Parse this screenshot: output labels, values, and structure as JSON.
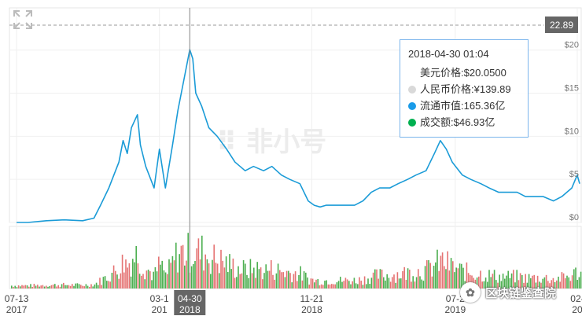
{
  "chart_data": {
    "type": "line",
    "x_ticks": [
      {
        "line1": "07-13",
        "line2": "2017",
        "date": "2017-07-13"
      },
      {
        "line1": "03-1",
        "line2": "201",
        "date": "2018-03-10"
      },
      {
        "line1": "04-30",
        "line2": "2018",
        "date": "2018-04-30",
        "highlight": true
      },
      {
        "line1": "11-21",
        "line2": "2018",
        "date": "2018-11-21"
      },
      {
        "line1": "07-2",
        "line2": "2019",
        "date": "2019-07-20"
      },
      {
        "line1": "02-",
        "line2": "20",
        "date": "2020-02-10"
      }
    ],
    "y_ticks": [
      "$20",
      "$15",
      "$10",
      "$5",
      "$0"
    ],
    "y_tick_values": [
      20,
      15,
      10,
      5,
      0
    ],
    "ylim": [
      0,
      22.89
    ],
    "current_price_label": "22.89",
    "series": [
      {
        "x": [
          "2017-07-13",
          "2017-08-01",
          "2017-09-01",
          "2017-10-01",
          "2017-11-01",
          "2017-11-20",
          "2017-12-01",
          "2017-12-15",
          "2018-01-01",
          "2018-01-08",
          "2018-01-15",
          "2018-01-22",
          "2018-02-01",
          "2018-02-06",
          "2018-02-15",
          "2018-03-01",
          "2018-03-10",
          "2018-03-20",
          "2018-04-01",
          "2018-04-10",
          "2018-04-20",
          "2018-04-30",
          "2018-05-05",
          "2018-05-10",
          "2018-05-20",
          "2018-06-01",
          "2018-06-15",
          "2018-07-01",
          "2018-07-15",
          "2018-08-01",
          "2018-08-15",
          "2018-09-01",
          "2018-09-15",
          "2018-10-01",
          "2018-10-15",
          "2018-11-01",
          "2018-11-15",
          "2018-11-25",
          "2018-12-05",
          "2018-12-15",
          "2019-01-01",
          "2019-01-15",
          "2019-02-01",
          "2019-02-15",
          "2019-03-01",
          "2019-03-15",
          "2019-04-01",
          "2019-04-15",
          "2019-05-01",
          "2019-05-15",
          "2019-06-01",
          "2019-06-15",
          "2019-06-25",
          "2019-07-05",
          "2019-07-15",
          "2019-08-01",
          "2019-08-15",
          "2019-09-01",
          "2019-09-15",
          "2019-10-01",
          "2019-10-15",
          "2019-11-01",
          "2019-11-15",
          "2019-12-01",
          "2019-12-15",
          "2020-01-01",
          "2020-01-15",
          "2020-02-01",
          "2020-02-10",
          "2020-02-14"
        ],
        "values": [
          0.0,
          0.0,
          0.2,
          0.3,
          0.2,
          0.5,
          2.0,
          4.0,
          7.0,
          9.5,
          8.0,
          11.0,
          12.5,
          9.0,
          6.5,
          4.0,
          8.5,
          4.0,
          9.0,
          13.0,
          16.5,
          20.05,
          19.0,
          15.0,
          13.5,
          11.0,
          10.0,
          8.5,
          7.0,
          6.0,
          6.5,
          6.0,
          6.5,
          5.5,
          5.0,
          4.5,
          2.5,
          2.0,
          1.8,
          2.0,
          2.0,
          2.0,
          2.0,
          2.5,
          3.5,
          4.0,
          4.0,
          4.5,
          5.0,
          5.5,
          6.0,
          8.0,
          9.5,
          8.5,
          7.0,
          5.5,
          5.0,
          4.5,
          4.0,
          3.5,
          3.5,
          3.5,
          3.0,
          3.0,
          3.0,
          2.5,
          3.0,
          4.0,
          5.5,
          4.5
        ]
      }
    ],
    "tooltip": {
      "time": "2018-04-30 01:04",
      "usd_price": "美元价格:$20.0500",
      "cny_price": "人民币价格:¥139.89",
      "market_cap": "流通市值:165.36亿",
      "volume": "成交额:$46.93亿"
    },
    "colors": {
      "line": "#1a9bd7",
      "volume_up": "#4caf50",
      "volume_down": "#e57373",
      "dot_cny": "#d9d9d9",
      "dot_cap": "#1a9be8",
      "dot_vol": "#00b050",
      "tooltip_border": "#7cb5ec",
      "price_tag_bg": "#666666"
    },
    "watermark_logo_text": "非小号",
    "watermark_account": "区块链鉴查院"
  }
}
